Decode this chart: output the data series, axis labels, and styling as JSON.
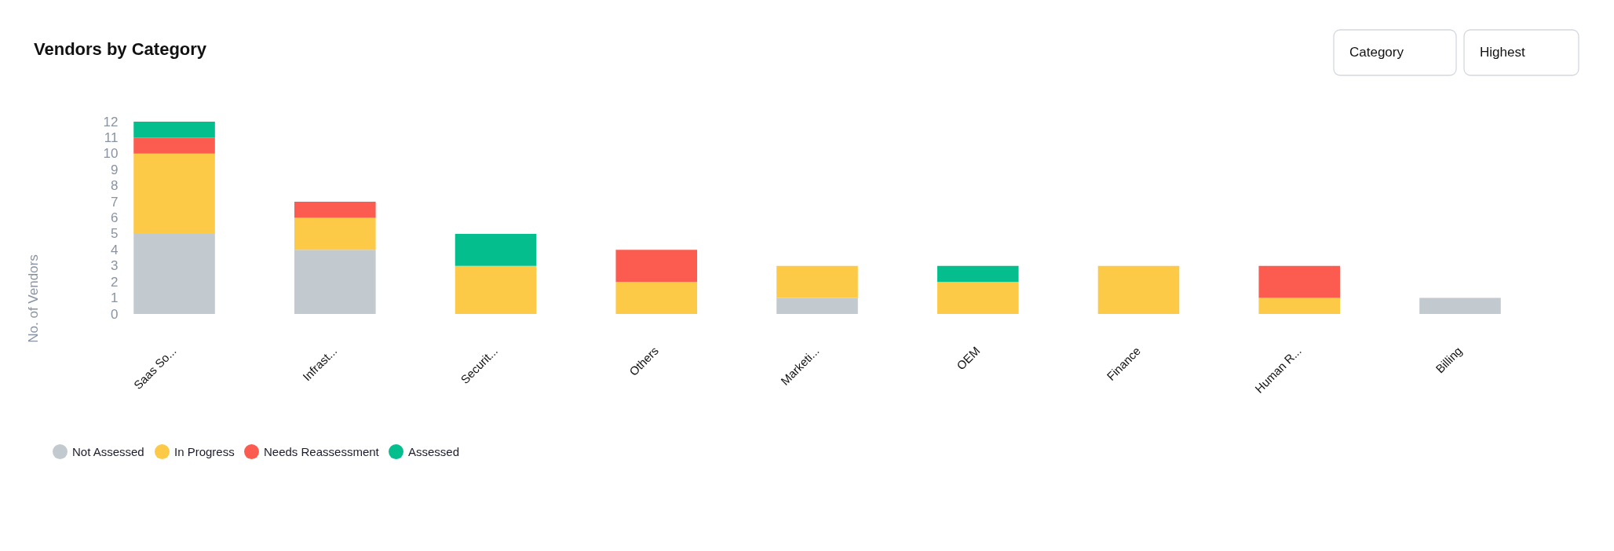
{
  "chart_data": {
    "type": "bar",
    "title": "Vendors by Category",
    "ylabel": "No. of Vendors",
    "categories": [
      "Saas So...",
      "Infrast...",
      "Securit...",
      "Others",
      "Marketi...",
      "OEM",
      "Finance",
      "Human R...",
      "Billing"
    ],
    "series": [
      {
        "name": "Not Assessed",
        "color": "#c3cacf",
        "values": [
          5,
          4,
          null,
          null,
          1,
          null,
          null,
          null,
          1
        ]
      },
      {
        "name": "In Progress",
        "color": "#fdca48",
        "values": [
          5,
          2,
          3,
          2,
          2,
          2,
          3,
          1,
          null
        ]
      },
      {
        "name": "Needs Reassessment",
        "color": "#fc5c4f",
        "values": [
          1,
          1,
          null,
          2,
          null,
          null,
          null,
          2,
          null
        ]
      },
      {
        "name": "Assessed",
        "color": "#05be8d",
        "values": [
          1,
          null,
          2,
          null,
          null,
          1,
          null,
          null,
          null
        ]
      }
    ],
    "stacked": true,
    "ylim": [
      0,
      12
    ],
    "yticks": [
      0,
      1,
      2,
      3,
      4,
      5,
      6,
      7,
      8,
      9,
      10,
      11,
      12
    ],
    "legend": "bottom left",
    "annotations": [
      "Category",
      "Highest"
    ]
  }
}
